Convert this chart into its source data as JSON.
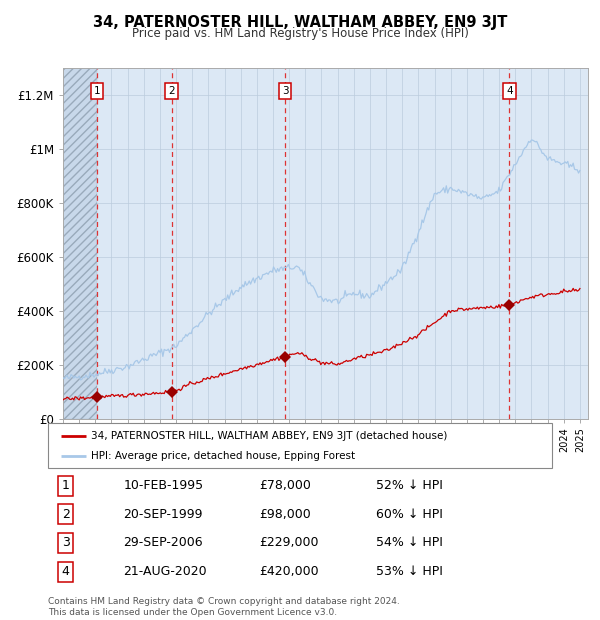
{
  "title": "34, PATERNOSTER HILL, WALTHAM ABBEY, EN9 3JT",
  "subtitle": "Price paid vs. HM Land Registry's House Price Index (HPI)",
  "ylim": [
    0,
    1300000
  ],
  "yticks": [
    0,
    200000,
    400000,
    600000,
    800000,
    1000000,
    1200000
  ],
  "ytick_labels": [
    "£0",
    "£200K",
    "£400K",
    "£600K",
    "£800K",
    "£1M",
    "£1.2M"
  ],
  "x_start_year": 1993,
  "x_end_year": 2025,
  "hpi_color": "#a8c8e8",
  "price_color": "#cc0000",
  "sale_marker_color": "#990000",
  "dashed_line_color": "#dd3333",
  "background_color": "#dce8f5",
  "grid_color": "#bbccdd",
  "sale_date_nums": [
    1995.11,
    1999.72,
    2006.75,
    2020.64
  ],
  "sale_prices": [
    78000,
    98000,
    229000,
    420000
  ],
  "sale_labels": [
    "1",
    "2",
    "3",
    "4"
  ],
  "legend_entries": [
    "34, PATERNOSTER HILL, WALTHAM ABBEY, EN9 3JT (detached house)",
    "HPI: Average price, detached house, Epping Forest"
  ],
  "table_rows": [
    [
      "1",
      "10-FEB-1995",
      "£78,000",
      "52% ↓ HPI"
    ],
    [
      "2",
      "20-SEP-1999",
      "£98,000",
      "60% ↓ HPI"
    ],
    [
      "3",
      "29-SEP-2006",
      "£229,000",
      "54% ↓ HPI"
    ],
    [
      "4",
      "21-AUG-2020",
      "£420,000",
      "53% ↓ HPI"
    ]
  ],
  "footer": "Contains HM Land Registry data © Crown copyright and database right 2024.\nThis data is licensed under the Open Government Licence v3.0."
}
